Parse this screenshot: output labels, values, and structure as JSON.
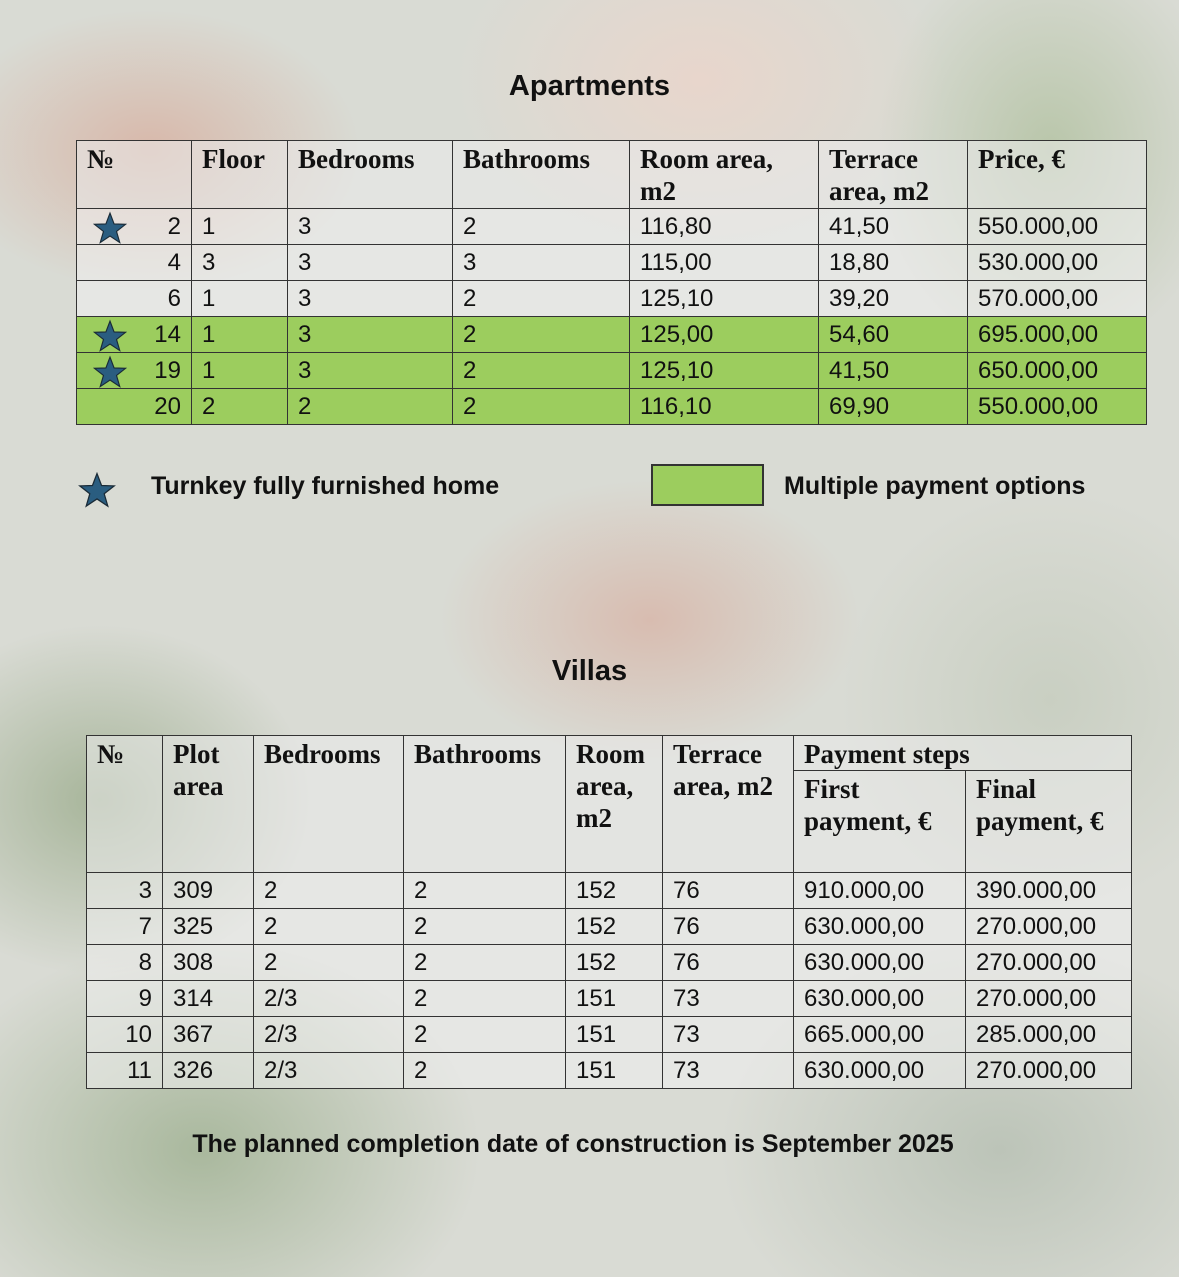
{
  "apartments": {
    "title": "Apartments",
    "headers": [
      "№",
      "Floor",
      "Bedrooms",
      "Bathrooms",
      "Room area, m2",
      "Terrace area, m2",
      "Price, €"
    ],
    "rows": [
      {
        "no": "2",
        "floor": "1",
        "bedrooms": "3",
        "bathrooms": "2",
        "room_area": "116,80",
        "terrace_area": "41,50",
        "price": "550.000,00",
        "turnkey": true,
        "multiple_payment": false
      },
      {
        "no": "4",
        "floor": "3",
        "bedrooms": "3",
        "bathrooms": "3",
        "room_area": "115,00",
        "terrace_area": "18,80",
        "price": "530.000,00",
        "turnkey": false,
        "multiple_payment": false
      },
      {
        "no": "6",
        "floor": "1",
        "bedrooms": "3",
        "bathrooms": "2",
        "room_area": "125,10",
        "terrace_area": "39,20",
        "price": "570.000,00",
        "turnkey": false,
        "multiple_payment": false
      },
      {
        "no": "14",
        "floor": "1",
        "bedrooms": "3",
        "bathrooms": "2",
        "room_area": "125,00",
        "terrace_area": "54,60",
        "price": "695.000,00",
        "turnkey": true,
        "multiple_payment": true
      },
      {
        "no": "19",
        "floor": "1",
        "bedrooms": "3",
        "bathrooms": "2",
        "room_area": "125,10",
        "terrace_area": "41,50",
        "price": "650.000,00",
        "turnkey": true,
        "multiple_payment": true
      },
      {
        "no": "20",
        "floor": "2",
        "bedrooms": "2",
        "bathrooms": "2",
        "room_area": "116,10",
        "terrace_area": "69,90",
        "price": "550.000,00",
        "turnkey": false,
        "multiple_payment": true
      }
    ]
  },
  "legend": {
    "turnkey_label": "Turnkey fully furnished home",
    "turnkey_icon": "star-icon",
    "payment_label": "Multiple payment options"
  },
  "villas": {
    "title": "Villas",
    "headers": [
      "№",
      "Plot area",
      "Bedrooms",
      "Bathrooms",
      "Room area, m2",
      "Terrace area, m2"
    ],
    "payment_group": "Payment steps",
    "payment_headers": [
      "First payment, €",
      "Final payment, €"
    ],
    "rows": [
      {
        "no": "3",
        "plot": "309",
        "bedrooms": "2",
        "bathrooms": "2",
        "room_area": "152",
        "terrace_area": "76",
        "first": "910.000,00",
        "final": "390.000,00"
      },
      {
        "no": "7",
        "plot": "325",
        "bedrooms": "2",
        "bathrooms": "2",
        "room_area": "152",
        "terrace_area": "76",
        "first": "630.000,00",
        "final": "270.000,00"
      },
      {
        "no": "8",
        "plot": "308",
        "bedrooms": "2",
        "bathrooms": "2",
        "room_area": "152",
        "terrace_area": "76",
        "first": "630.000,00",
        "final": "270.000,00"
      },
      {
        "no": "9",
        "plot": "314",
        "bedrooms": "2/3",
        "bathrooms": "2",
        "room_area": "151",
        "terrace_area": "73",
        "first": "630.000,00",
        "final": "270.000,00"
      },
      {
        "no": "10",
        "plot": "367",
        "bedrooms": "2/3",
        "bathrooms": "2",
        "room_area": "151",
        "terrace_area": "73",
        "first": "665.000,00",
        "final": "285.000,00"
      },
      {
        "no": "11",
        "plot": "326",
        "bedrooms": "2/3",
        "bathrooms": "2",
        "room_area": "151",
        "terrace_area": "73",
        "first": "630.000,00",
        "final": "270.000,00"
      }
    ]
  },
  "footer": "The planned completion date of construction is September 2025",
  "colors": {
    "green": "#9ccd5e",
    "star": "#2a5d80"
  }
}
